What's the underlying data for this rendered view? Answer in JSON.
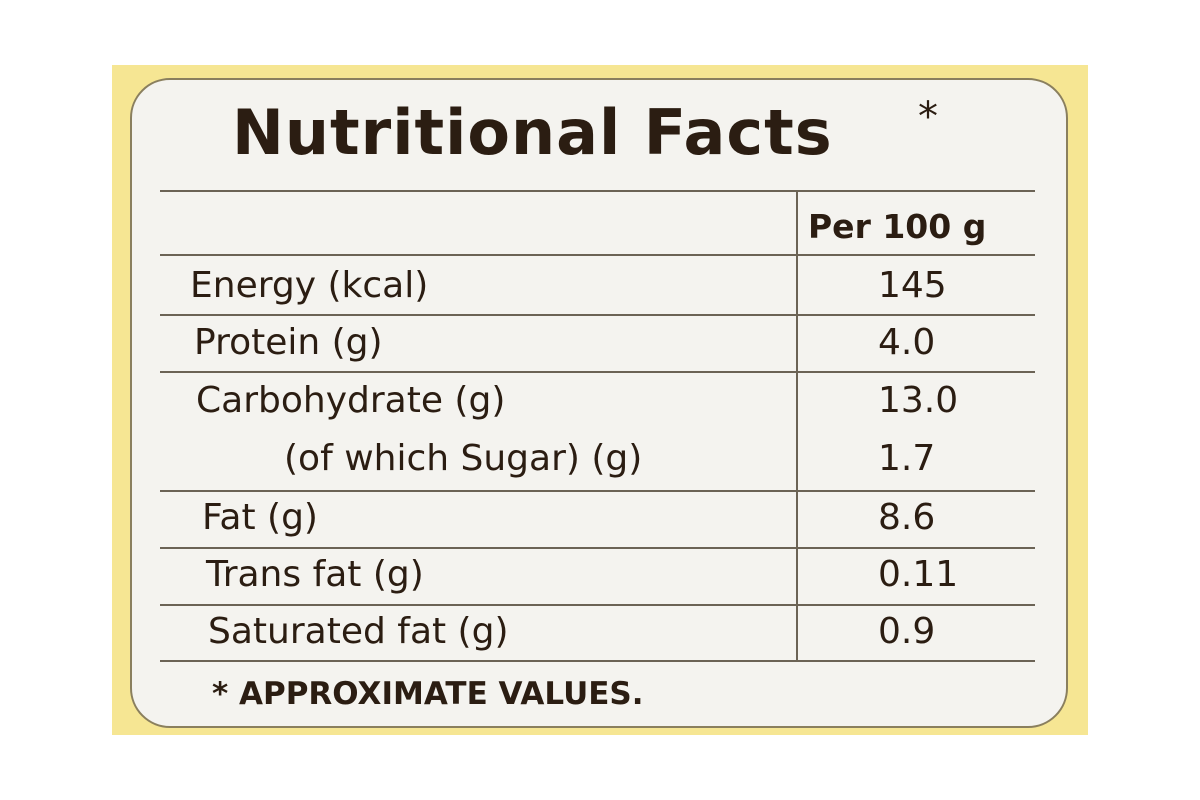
{
  "header": {
    "title": "Nutritional Facts",
    "title_mark": "*"
  },
  "table": {
    "column_header": "Per 100 g",
    "rows": [
      [
        "Energy (kcal)",
        "145"
      ],
      [
        "Protein (g)",
        "4.0"
      ],
      [
        "Carbohydrate (g)",
        "13.0"
      ],
      [
        "(of which Sugar) (g)",
        "1.7"
      ],
      [
        "Fat (g)",
        "8.6"
      ],
      [
        "Trans fat (g)",
        "0.11"
      ],
      [
        "Saturated fat (g)",
        "0.9"
      ]
    ]
  },
  "footer": {
    "note": "* APPROXIMATE VALUES."
  }
}
